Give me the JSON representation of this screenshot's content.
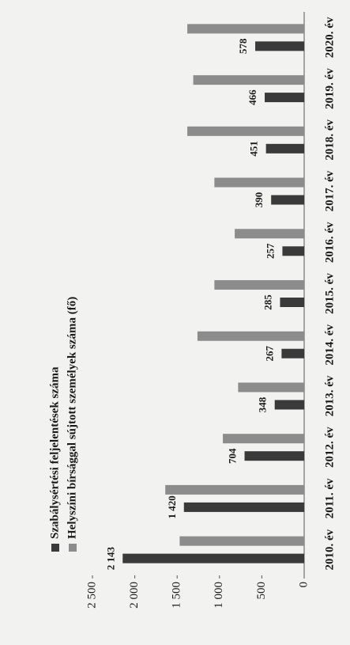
{
  "chart_data": {
    "type": "bar",
    "categories": [
      "2010. év",
      "2011. év",
      "2012. év",
      "2013. év",
      "2014. év",
      "2015. év",
      "2016. év",
      "2017. év",
      "2018. év",
      "2019. év",
      "2020. év"
    ],
    "series": [
      {
        "name": "Szabálysértési feljelentések száma",
        "color": "#3a3a3a",
        "values": [
          2143,
          1420,
          704,
          348,
          267,
          285,
          257,
          390,
          451,
          466,
          578
        ],
        "value_labels": [
          "2 143",
          "1 420",
          "704",
          "348",
          "267",
          "285",
          "257",
          "390",
          "451",
          "466",
          "578"
        ]
      },
      {
        "name": "Helyszíni bírsággal sújtott személyek száma (fő)",
        "color": "#8c8c8c",
        "values": [
          1470,
          1640,
          960,
          780,
          1260,
          1060,
          820,
          1060,
          1380,
          1310,
          1380
        ]
      }
    ],
    "ylim": [
      0,
      2500
    ],
    "yticks": [
      0,
      500,
      {
        "value": 1000,
        "label": "1 000"
      },
      {
        "value": 1500,
        "label": "1 500"
      },
      {
        "value": 2000,
        "label": "2 000"
      },
      {
        "value": 2500,
        "label": "2 500"
      }
    ],
    "grid": false
  }
}
